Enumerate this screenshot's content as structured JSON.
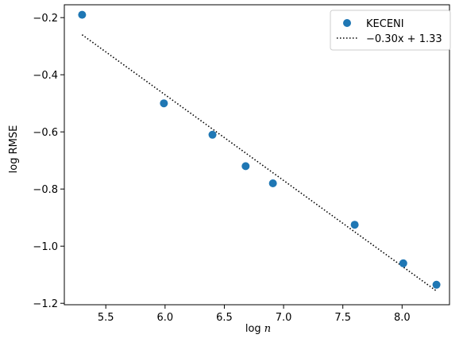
{
  "chart_data": {
    "type": "scatter",
    "xlabel": "log n",
    "ylabel": "log RMSE",
    "xlim": [
      5.15,
      8.4
    ],
    "ylim": [
      -1.205,
      -0.155
    ],
    "xticks": [
      5.5,
      6.0,
      6.5,
      7.0,
      7.5,
      8.0
    ],
    "yticks": [
      -0.2,
      -0.4,
      -0.6,
      -0.8,
      -1.0,
      -1.2
    ],
    "xtick_labels": [
      "5.5",
      "6.0",
      "6.5",
      "7.0",
      "7.5",
      "8.0"
    ],
    "ytick_labels": [
      "−0.2",
      "−0.4",
      "−0.6",
      "−0.8",
      "−1.0",
      "−1.2"
    ],
    "grid": false,
    "legend_position": "top-right",
    "series": [
      {
        "name": "KECENI",
        "kind": "scatter",
        "color": "#1f77b4",
        "x": [
          5.3,
          5.99,
          6.4,
          6.68,
          6.91,
          7.6,
          8.01,
          8.29
        ],
        "y": [
          -0.19,
          -0.5,
          -0.61,
          -0.72,
          -0.78,
          -0.925,
          -1.06,
          -1.135
        ]
      },
      {
        "name": "−0.30x + 1.33",
        "kind": "line",
        "style": "dotted",
        "color": "#000000",
        "slope": -0.3,
        "intercept": 1.33,
        "x_range": [
          5.3,
          8.29
        ]
      }
    ]
  }
}
